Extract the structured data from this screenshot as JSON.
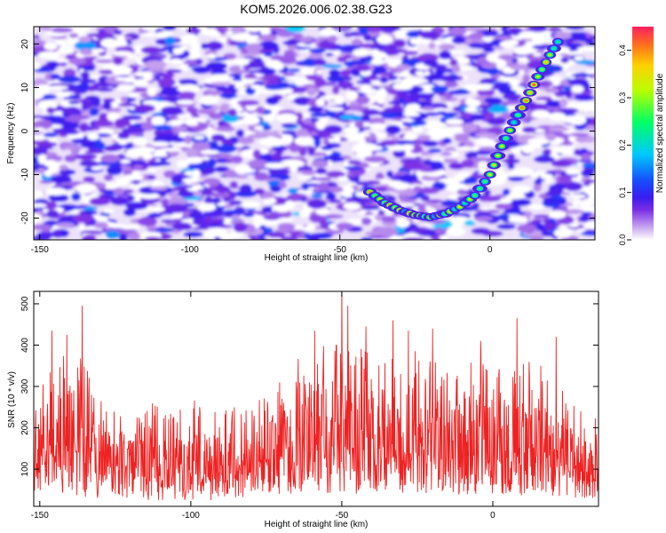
{
  "title": "KOM5.2026.006.02.38.G23",
  "colors": {
    "snr_line": "#ee2222",
    "spec_background": "#ffffff"
  },
  "chart_data": [
    {
      "type": "heatmap",
      "xlabel": "Height of straight line (km)",
      "ylabel": "Frequency (Hz)",
      "xlim": [
        -152,
        35
      ],
      "ylim": [
        -25,
        24
      ],
      "x_ticks": [
        -150,
        -100,
        -50,
        0
      ],
      "y_ticks": [
        -20,
        -10,
        0,
        10,
        20
      ],
      "colorbar": {
        "label": "Normalized spectral amplitude",
        "range": [
          0.0,
          0.45
        ],
        "ticks": [
          0.0,
          0.1,
          0.2,
          0.3,
          0.4
        ],
        "tick_labels": [
          "0.0",
          "0.1",
          "0.2",
          "0.3",
          "0.4"
        ],
        "colormap": [
          "#ffffff",
          "#c7a4ef",
          "#7b2fe6",
          "#3a1cf0",
          "#1450ff",
          "#00c8ff",
          "#00ff66",
          "#b8ff00",
          "#ffd000",
          "#ff2060"
        ]
      },
      "ridge": {
        "description_points": [
          {
            "x": -40,
            "y": -14
          },
          {
            "x": -35,
            "y": -16.5
          },
          {
            "x": -30,
            "y": -18.2
          },
          {
            "x": -25,
            "y": -19.3
          },
          {
            "x": -20,
            "y": -19.8
          },
          {
            "x": -15,
            "y": -19
          },
          {
            "x": -10,
            "y": -17.4
          },
          {
            "x": -5,
            "y": -14.8
          },
          {
            "x": 0,
            "y": -10
          },
          {
            "x": 4,
            "y": -3.5
          },
          {
            "x": 8,
            "y": 2
          },
          {
            "x": 12,
            "y": 7
          },
          {
            "x": 16,
            "y": 12.5
          },
          {
            "x": 20,
            "y": 17.5
          },
          {
            "x": 24,
            "y": 22
          }
        ],
        "peak_amplitude": 0.42
      }
    },
    {
      "type": "line",
      "xlabel": "Height of straight line (km)",
      "ylabel": "SNR (10 * v/v)",
      "xlim": [
        -152,
        35
      ],
      "ylim": [
        10,
        530
      ],
      "x_ticks": [
        -150,
        -100,
        -50,
        0
      ],
      "y_ticks": [
        100,
        200,
        300,
        400,
        500
      ],
      "series": [
        {
          "envelope": [
            {
              "x": -150,
              "lo": 40,
              "hi": 300
            },
            {
              "x": -140,
              "lo": 30,
              "hi": 420
            },
            {
              "x": -130,
              "lo": 30,
              "hi": 280
            },
            {
              "x": -120,
              "lo": 25,
              "hi": 270
            },
            {
              "x": -110,
              "lo": 25,
              "hi": 260
            },
            {
              "x": -100,
              "lo": 25,
              "hi": 270
            },
            {
              "x": -90,
              "lo": 25,
              "hi": 250
            },
            {
              "x": -80,
              "lo": 30,
              "hi": 260
            },
            {
              "x": -70,
              "lo": 40,
              "hi": 360
            },
            {
              "x": -60,
              "lo": 40,
              "hi": 400
            },
            {
              "x": -50,
              "lo": 40,
              "hi": 420
            },
            {
              "x": -40,
              "lo": 40,
              "hi": 380
            },
            {
              "x": -30,
              "lo": 40,
              "hi": 400
            },
            {
              "x": -20,
              "lo": 35,
              "hi": 380
            },
            {
              "x": -10,
              "lo": 35,
              "hi": 370
            },
            {
              "x": 0,
              "lo": 35,
              "hi": 380
            },
            {
              "x": 10,
              "lo": 35,
              "hi": 380
            },
            {
              "x": 20,
              "lo": 30,
              "hi": 330
            },
            {
              "x": 30,
              "lo": 30,
              "hi": 240
            },
            {
              "x": 35,
              "lo": 30,
              "hi": 220
            }
          ],
          "spikes": [
            {
              "x": -136,
              "y": 495
            },
            {
              "x": -146,
              "y": 435
            },
            {
              "x": -141,
              "y": 425
            },
            {
              "x": -50,
              "y": 540
            },
            {
              "x": -48,
              "y": 495
            },
            {
              "x": -59,
              "y": 435
            },
            {
              "x": -42,
              "y": 445
            },
            {
              "x": -33,
              "y": 460
            },
            {
              "x": -28,
              "y": 435
            },
            {
              "x": -20,
              "y": 440
            },
            {
              "x": 8,
              "y": 465
            },
            {
              "x": 21,
              "y": 420
            },
            {
              "x": -4,
              "y": 410
            }
          ]
        }
      ]
    }
  ]
}
